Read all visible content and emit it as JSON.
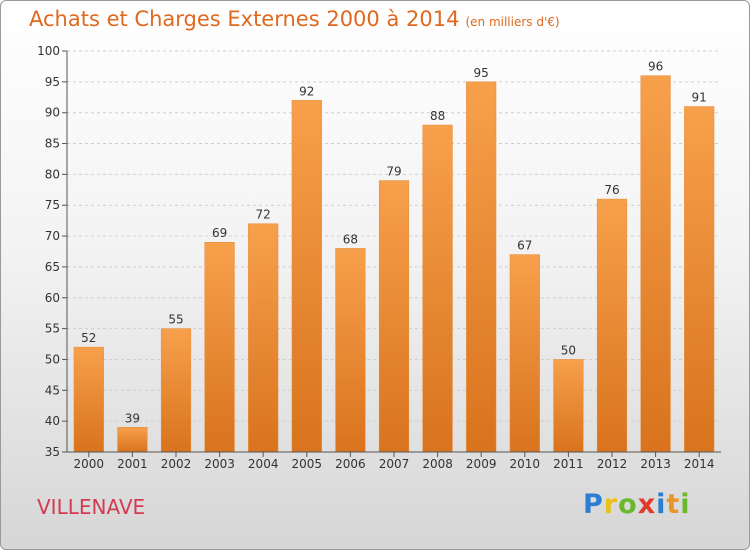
{
  "title": "Achats et Charges Externes 2000 à 2014",
  "subtitle": "(en milliers d'€)",
  "city": "VILLENAVE",
  "logo": {
    "letters": [
      "P",
      "r",
      "o",
      "x",
      "i",
      "t",
      "i"
    ],
    "colors": [
      "#2a7fd0",
      "#e8c21a",
      "#6ab82e",
      "#e23a2a",
      "#2a7fd0",
      "#e8962a",
      "#6ab82e"
    ]
  },
  "chart_data": {
    "type": "bar",
    "categories": [
      "2000",
      "2001",
      "2002",
      "2003",
      "2004",
      "2005",
      "2006",
      "2007",
      "2008",
      "2009",
      "2010",
      "2011",
      "2012",
      "2013",
      "2014"
    ],
    "values": [
      52,
      39,
      55,
      69,
      72,
      92,
      68,
      79,
      88,
      95,
      67,
      50,
      76,
      96,
      91
    ],
    "ylim": [
      35,
      100
    ],
    "yticks": [
      35,
      40,
      45,
      50,
      55,
      60,
      65,
      70,
      75,
      80,
      85,
      90,
      95,
      100
    ],
    "grid": true,
    "bar_color": "#f0902f"
  }
}
